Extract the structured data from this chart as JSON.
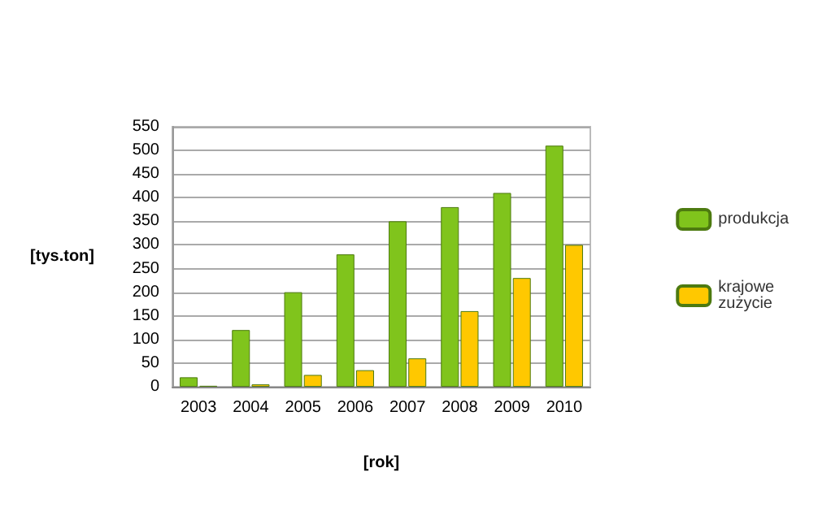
{
  "chart_data": {
    "type": "bar",
    "xlabel": "[rok]",
    "ylabel": "[tys.ton]",
    "categories": [
      "2003",
      "2004",
      "2005",
      "2006",
      "2007",
      "2008",
      "2009",
      "2010"
    ],
    "series": [
      {
        "name": "produkcja",
        "color": "#80c41c",
        "values": [
          20,
          120,
          200,
          280,
          350,
          380,
          410,
          510
        ]
      },
      {
        "name": "krajowe zużycie",
        "color": "#ffc800",
        "values": [
          2,
          5,
          25,
          35,
          60,
          160,
          230,
          300
        ]
      }
    ],
    "ylim": [
      0,
      550
    ],
    "yticks": [
      0,
      50,
      100,
      150,
      200,
      250,
      300,
      350,
      400,
      450,
      500,
      550
    ],
    "grid": "y",
    "legend": "right"
  }
}
